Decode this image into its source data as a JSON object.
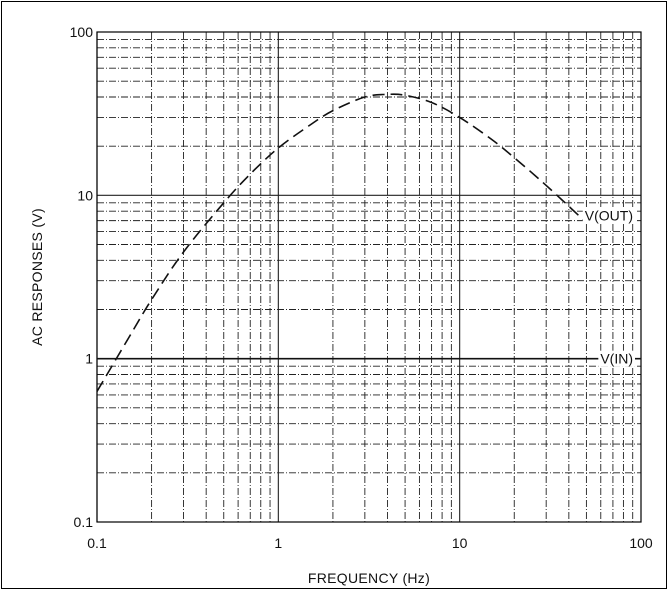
{
  "chart_data": {
    "type": "line",
    "xscale": "log",
    "yscale": "log",
    "xlim": [
      0.1,
      100
    ],
    "ylim": [
      0.1,
      100
    ],
    "xlabel": "FREQUENCY (Hz)",
    "ylabel": "AC RESPONSES (V)",
    "xticks": [
      "0.1",
      "1",
      "10",
      "100"
    ],
    "yticks": [
      "0.1",
      "1",
      "10",
      "100"
    ],
    "grid": true,
    "series": [
      {
        "name": "V(OUT)",
        "style": "dashed",
        "x": [
          0.1,
          0.15,
          0.2,
          0.3,
          0.5,
          0.7,
          1,
          1.5,
          2,
          3,
          4,
          5,
          7,
          10,
          15,
          20,
          30,
          50
        ],
        "y": [
          0.63,
          1.35,
          2.3,
          4.5,
          9.0,
          13.5,
          19.5,
          27,
          33,
          40,
          41.5,
          41,
          37,
          30,
          22,
          17,
          11.5,
          6.8
        ]
      },
      {
        "name": "V(IN)",
        "style": "solid",
        "x": [
          0.1,
          100
        ],
        "y": [
          1,
          1
        ]
      }
    ]
  }
}
